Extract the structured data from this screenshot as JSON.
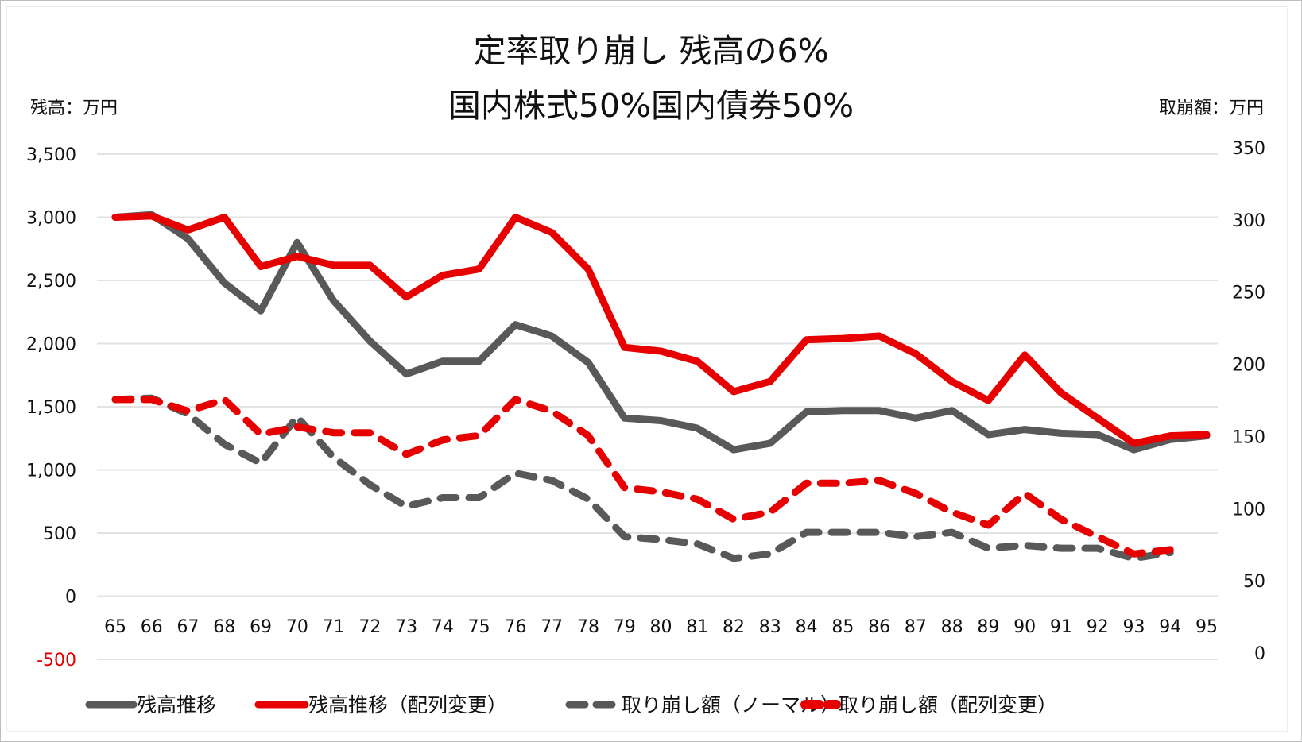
{
  "chart_data": {
    "type": "line",
    "title": [
      "定率取り崩し 残高の6%",
      "国内株式50%国内債券50%"
    ],
    "ylabel": "残高：万円",
    "y2label": "取崩額：万円",
    "xlabel": "",
    "ylim": [
      -500,
      3500
    ],
    "y2lim": [
      0,
      350
    ],
    "yticks": [
      "3,500",
      "3,000",
      "2,500",
      "2,000",
      "1,500",
      "1,000",
      "500",
      "0",
      "-500"
    ],
    "yticks_values": [
      3500,
      3000,
      2500,
      2000,
      1500,
      1000,
      500,
      0,
      -500
    ],
    "y2ticks": [
      "350",
      "300",
      "250",
      "200",
      "150",
      "100",
      "50",
      "0"
    ],
    "y2ticks_values": [
      350,
      300,
      250,
      200,
      150,
      100,
      50,
      0
    ],
    "grid": true,
    "legend_position": "bottom",
    "categories": [
      "65",
      "66",
      "67",
      "68",
      "69",
      "70",
      "71",
      "72",
      "73",
      "74",
      "75",
      "76",
      "77",
      "78",
      "79",
      "80",
      "81",
      "82",
      "83",
      "84",
      "85",
      "86",
      "87",
      "88",
      "89",
      "90",
      "91",
      "92",
      "93",
      "94",
      "95"
    ],
    "series": [
      {
        "name": "残高推移",
        "axis": "left",
        "style": "solid",
        "color": "#595959",
        "values": [
          3000,
          3020,
          2830,
          2480,
          2260,
          2800,
          2340,
          2020,
          1760,
          1860,
          1860,
          2150,
          2060,
          1850,
          1410,
          1390,
          1330,
          1160,
          1210,
          1460,
          1470,
          1470,
          1410,
          1470,
          1280,
          1320,
          1290,
          1280,
          1160,
          1240,
          1270
        ]
      },
      {
        "name": "残高推移（配列変更）",
        "axis": "left",
        "style": "solid",
        "color": "#e60000",
        "values": [
          3000,
          3010,
          2900,
          3000,
          2610,
          2690,
          2620,
          2620,
          2370,
          2540,
          2590,
          3000,
          2880,
          2590,
          1970,
          1940,
          1860,
          1620,
          1700,
          2030,
          2040,
          2060,
          1920,
          1700,
          1550,
          1910,
          1610,
          1410,
          1210,
          1270,
          1280
        ]
      },
      {
        "name": "取り崩し額（ノーマル）",
        "axis": "right",
        "style": "dashed",
        "color": "#595959",
        "values": [
          180,
          181,
          170,
          149,
          136,
          168,
          140,
          121,
          106,
          112,
          112,
          129,
          124,
          111,
          85,
          83,
          80,
          70,
          73,
          88,
          88,
          88,
          85,
          88,
          77,
          79,
          77,
          77,
          70,
          74,
          null
        ]
      },
      {
        "name": "取り崩し額（配列変更）",
        "axis": "right",
        "style": "dashed",
        "color": "#e60000",
        "values": [
          180,
          180,
          172,
          180,
          156,
          161,
          157,
          157,
          142,
          152,
          155,
          180,
          172,
          155,
          119,
          116,
          111,
          97,
          102,
          122,
          122,
          124,
          115,
          102,
          93,
          115,
          97,
          85,
          73,
          76,
          null
        ]
      }
    ]
  }
}
